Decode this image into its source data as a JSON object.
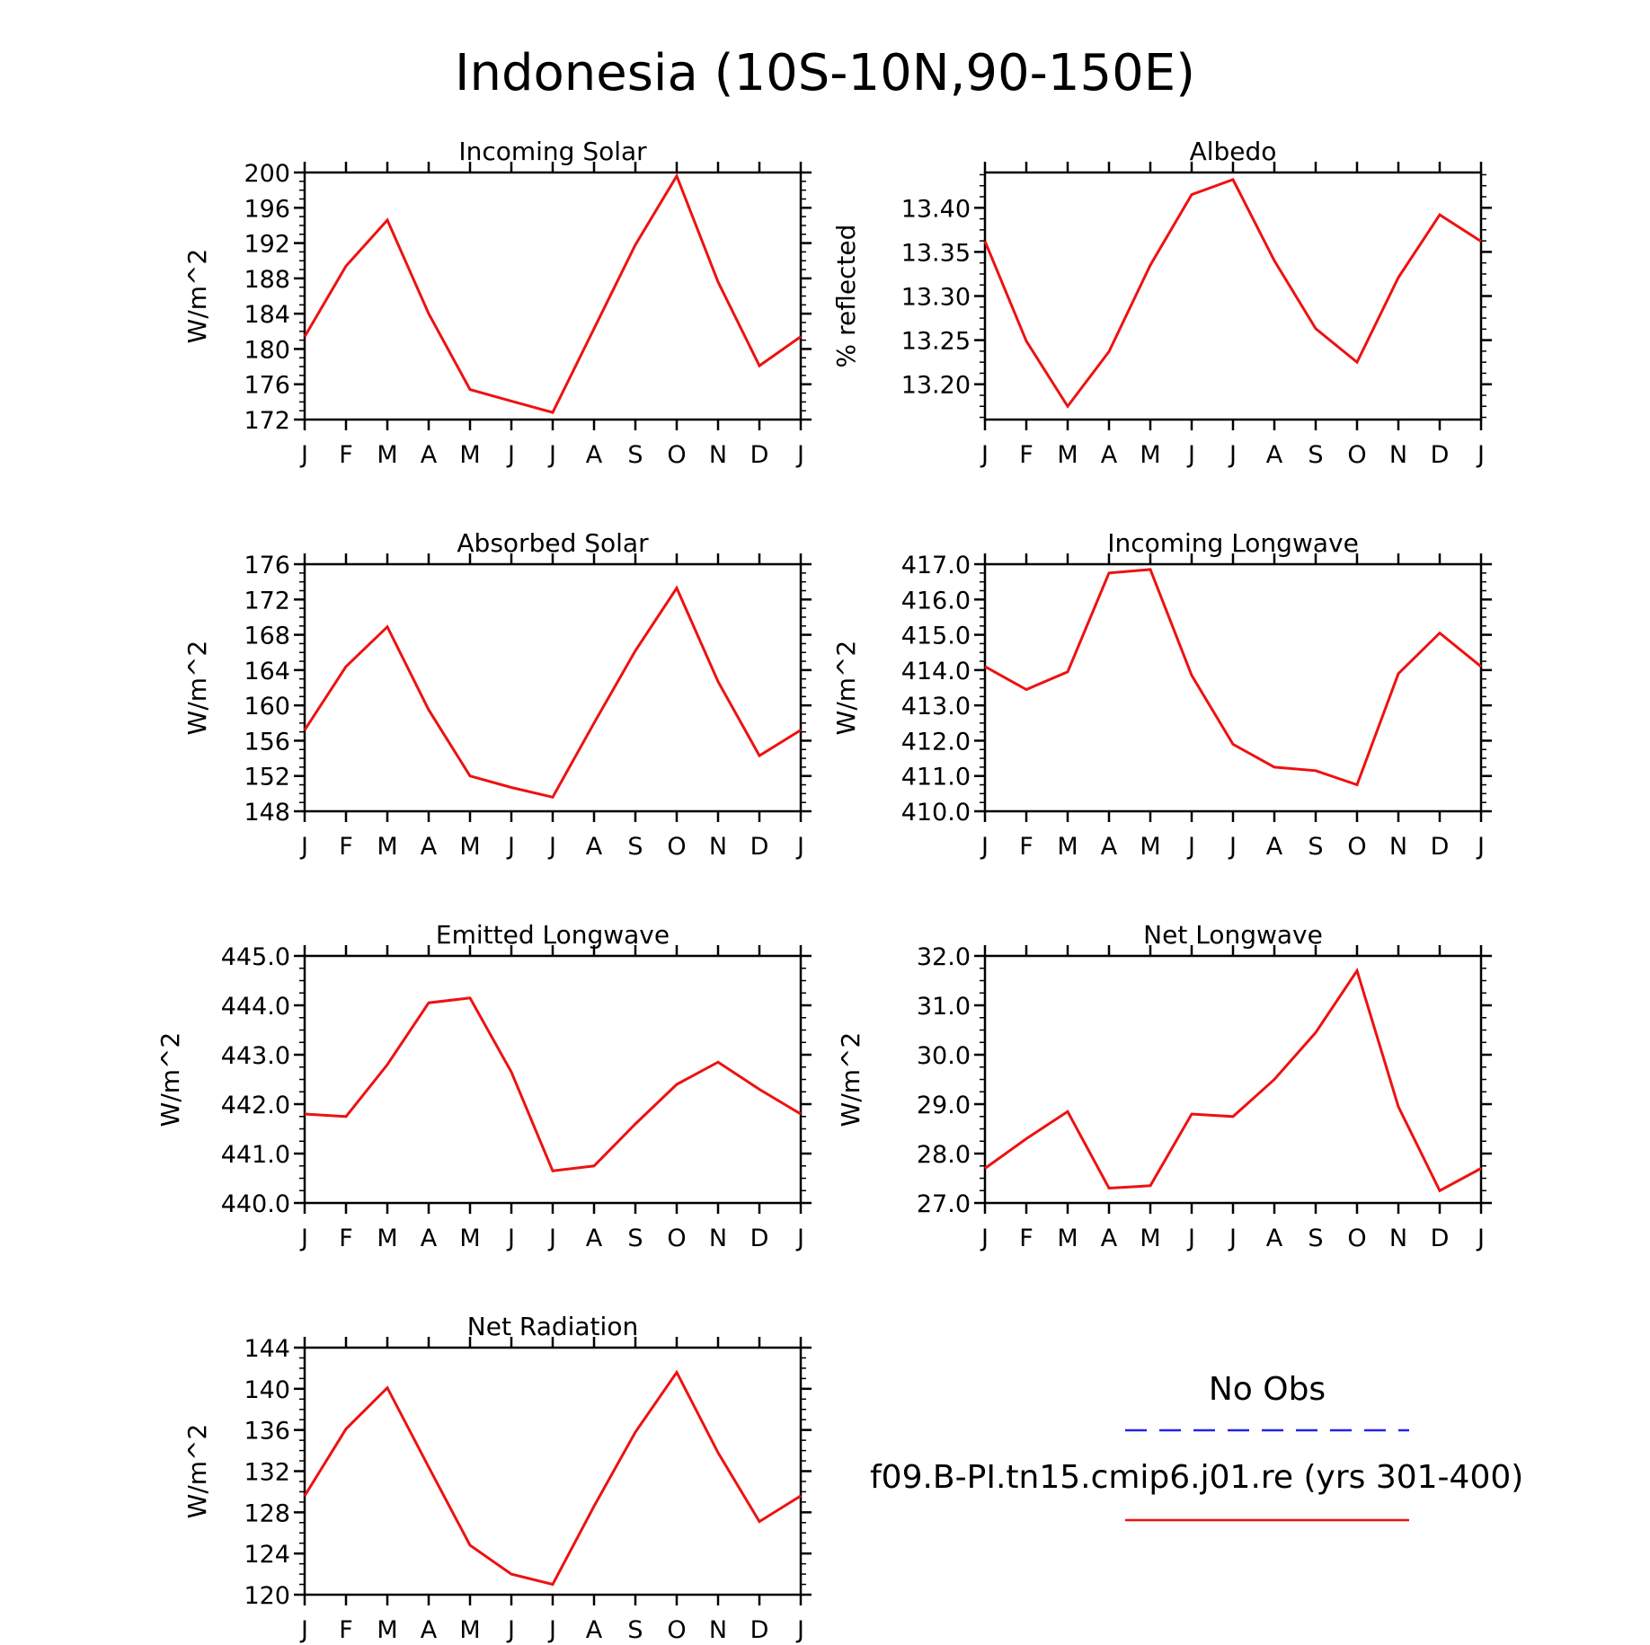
{
  "title": "Indonesia (10S-10N,90-150E)",
  "months": [
    "J",
    "F",
    "M",
    "A",
    "M",
    "J",
    "J",
    "A",
    "S",
    "O",
    "N",
    "D",
    "J"
  ],
  "legend": {
    "obs_label": "No Obs",
    "obs_color": "#2222ee",
    "model_label": "f09.B-PI.tn15.cmip6.j01.re (yrs 301-400)",
    "model_color": "#ee1111"
  },
  "chart_data": [
    {
      "type": "line",
      "title": "Incoming Solar",
      "ylabel": "W/m^2",
      "ylim": [
        172,
        200
      ],
      "yticks": [
        "172",
        "176",
        "180",
        "184",
        "188",
        "192",
        "196",
        "200"
      ],
      "x": [
        "J",
        "F",
        "M",
        "A",
        "M",
        "J",
        "J",
        "A",
        "S",
        "O",
        "N",
        "D",
        "J"
      ],
      "series": [
        {
          "values": [
            181.4,
            189.4,
            194.6,
            184.0,
            175.4,
            174.1,
            172.8,
            182.3,
            191.8,
            199.6,
            187.6,
            178.1,
            181.4
          ]
        }
      ]
    },
    {
      "type": "line",
      "title": "Albedo",
      "ylabel": "% reflected",
      "ylim": [
        13.16,
        13.44
      ],
      "yticks": [
        "13.20",
        "13.25",
        "13.30",
        "13.35",
        "13.40"
      ],
      "x": [
        "J",
        "F",
        "M",
        "A",
        "M",
        "J",
        "J",
        "A",
        "S",
        "O",
        "N",
        "D",
        "J"
      ],
      "series": [
        {
          "values": [
            13.362,
            13.249,
            13.175,
            13.237,
            13.335,
            13.415,
            13.432,
            13.34,
            13.263,
            13.225,
            13.321,
            13.392,
            13.362
          ]
        }
      ]
    },
    {
      "type": "line",
      "title": "Absorbed Solar",
      "ylabel": "W/m^2",
      "ylim": [
        148,
        176
      ],
      "yticks": [
        "148",
        "152",
        "156",
        "160",
        "164",
        "168",
        "172",
        "176"
      ],
      "x": [
        "J",
        "F",
        "M",
        "A",
        "M",
        "J",
        "J",
        "A",
        "S",
        "O",
        "N",
        "D",
        "J"
      ],
      "series": [
        {
          "values": [
            157.2,
            164.4,
            168.9,
            159.5,
            152.0,
            150.7,
            149.6,
            158.0,
            166.2,
            173.3,
            162.7,
            154.3,
            157.2
          ]
        }
      ]
    },
    {
      "type": "line",
      "title": "Incoming Longwave",
      "ylabel": "W/m^2",
      "ylim": [
        410.0,
        417.0
      ],
      "yticks": [
        "410.0",
        "411.0",
        "412.0",
        "413.0",
        "414.0",
        "415.0",
        "416.0",
        "417.0"
      ],
      "x": [
        "J",
        "F",
        "M",
        "A",
        "M",
        "J",
        "J",
        "A",
        "S",
        "O",
        "N",
        "D",
        "J"
      ],
      "series": [
        {
          "values": [
            414.1,
            413.45,
            413.95,
            416.75,
            416.85,
            413.85,
            411.9,
            411.25,
            411.15,
            410.75,
            413.9,
            415.05,
            414.1
          ]
        }
      ]
    },
    {
      "type": "line",
      "title": "Emitted Longwave",
      "ylabel": "W/m^2",
      "ylim": [
        440.0,
        445.0
      ],
      "yticks": [
        "440.0",
        "441.0",
        "442.0",
        "443.0",
        "444.0",
        "445.0"
      ],
      "x": [
        "J",
        "F",
        "M",
        "A",
        "M",
        "J",
        "J",
        "A",
        "S",
        "O",
        "N",
        "D",
        "J"
      ],
      "series": [
        {
          "values": [
            441.8,
            441.75,
            442.8,
            444.05,
            444.15,
            442.65,
            440.65,
            440.75,
            441.6,
            442.4,
            442.85,
            442.3,
            441.8
          ]
        }
      ]
    },
    {
      "type": "line",
      "title": "Net Longwave",
      "ylabel": "W/m^2",
      "ylim": [
        27.0,
        32.0
      ],
      "yticks": [
        "27.0",
        "28.0",
        "29.0",
        "30.0",
        "31.0",
        "32.0"
      ],
      "x": [
        "J",
        "F",
        "M",
        "A",
        "M",
        "J",
        "J",
        "A",
        "S",
        "O",
        "N",
        "D",
        "J"
      ],
      "series": [
        {
          "values": [
            27.7,
            28.3,
            28.85,
            27.3,
            27.35,
            28.8,
            28.75,
            29.5,
            30.45,
            31.7,
            28.95,
            27.25,
            27.7
          ]
        }
      ]
    },
    {
      "type": "line",
      "title": "Net Radiation",
      "ylabel": "W/m^2",
      "ylim": [
        120,
        144
      ],
      "yticks": [
        "120",
        "124",
        "128",
        "132",
        "136",
        "140",
        "144"
      ],
      "x": [
        "J",
        "F",
        "M",
        "A",
        "M",
        "J",
        "J",
        "A",
        "S",
        "O",
        "N",
        "D",
        "J"
      ],
      "series": [
        {
          "values": [
            129.6,
            136.1,
            140.1,
            132.4,
            124.8,
            122.0,
            121.0,
            128.6,
            135.8,
            141.6,
            133.8,
            127.1,
            129.6
          ]
        }
      ]
    }
  ]
}
